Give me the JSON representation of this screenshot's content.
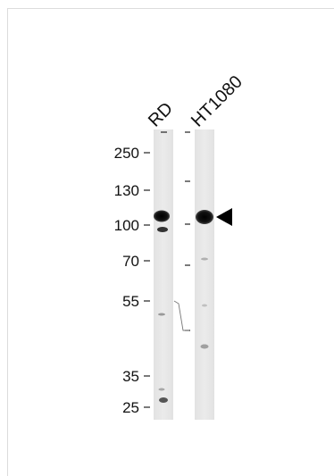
{
  "lanes": [
    {
      "name": "RD"
    },
    {
      "name": "HT1080"
    }
  ],
  "markers": [
    "250",
    "130",
    "100",
    "70",
    "55",
    "35",
    "25"
  ]
}
